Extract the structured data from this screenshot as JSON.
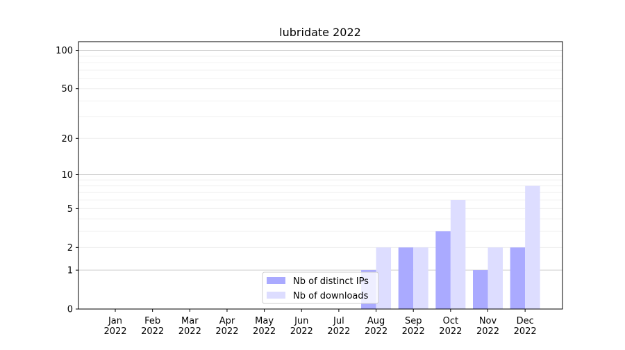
{
  "chart_data": {
    "type": "bar",
    "title": "lubridate 2022",
    "xlabel": "",
    "ylabel": "",
    "yscale": "log(1+y)",
    "ylim": [
      0,
      117
    ],
    "yticks": [
      0,
      1,
      2,
      5,
      10,
      20,
      50,
      100
    ],
    "grid": "horizontal",
    "legend_position": "lower-center",
    "categories": [
      "Jan\n2022",
      "Feb\n2022",
      "Mar\n2022",
      "Apr\n2022",
      "May\n2022",
      "Jun\n2022",
      "Jul\n2022",
      "Aug\n2022",
      "Sep\n2022",
      "Oct\n2022",
      "Nov\n2022",
      "Dec\n2022"
    ],
    "series": [
      {
        "name": "Nb of distinct IPs",
        "color": "#aaaaff",
        "values": [
          0,
          0,
          0,
          0,
          0,
          0,
          0,
          1,
          2,
          3,
          1,
          2
        ]
      },
      {
        "name": "Nb of downloads",
        "color": "#ddddff",
        "values": [
          0,
          0,
          0,
          0,
          0,
          0,
          0,
          2,
          2,
          6,
          2,
          8
        ]
      }
    ]
  }
}
